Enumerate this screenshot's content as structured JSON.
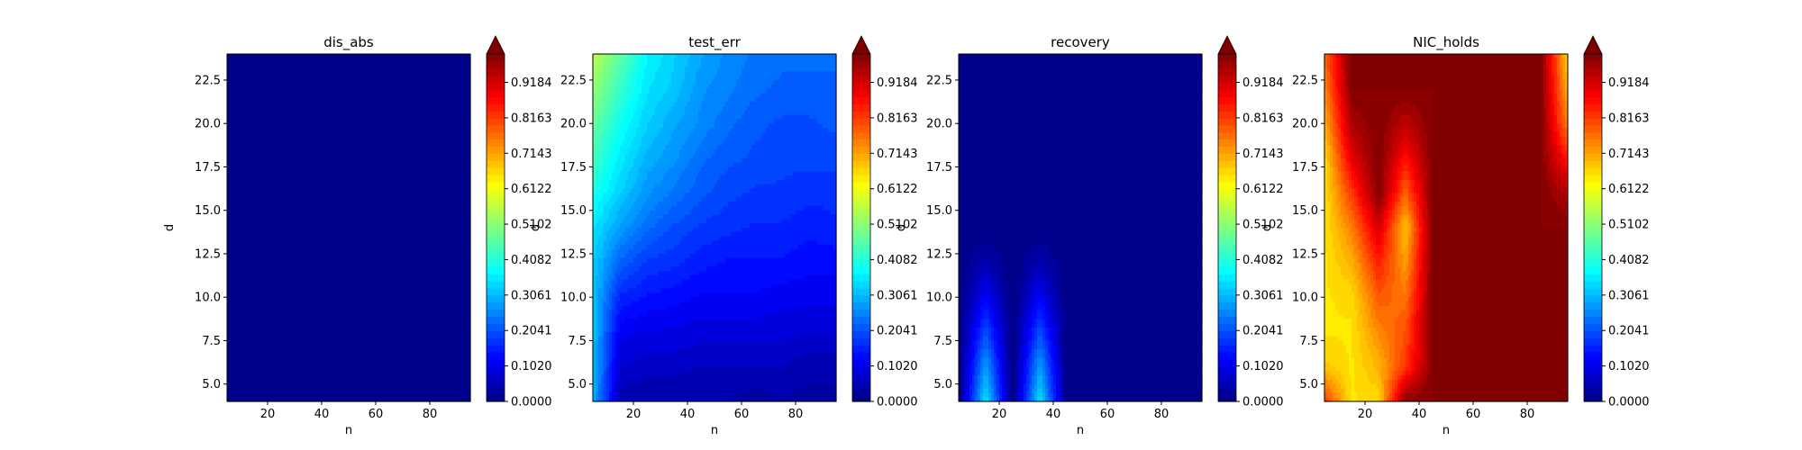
{
  "figure": {
    "background": "#ffffff"
  },
  "colorbar": {
    "ticks": [
      "0.0000",
      "0.1020",
      "0.2041",
      "0.3061",
      "0.4082",
      "0.5102",
      "0.6122",
      "0.7143",
      "0.8163",
      "0.9184"
    ],
    "extend": "max",
    "colormap": "jet"
  },
  "chart_data": [
    {
      "type": "heatmap",
      "title": "dis_abs",
      "xlabel": "n",
      "ylabel": "d",
      "xlim": [
        5,
        95
      ],
      "ylim": [
        4,
        24
      ],
      "xticks": [
        "20",
        "40",
        "60",
        "80"
      ],
      "yticks": [
        "5.0",
        "7.5",
        "10.0",
        "12.5",
        "15.0",
        "17.5",
        "20.0",
        "22.5"
      ],
      "description_value": 0.0,
      "values": "uniform 0 everywhere"
    },
    {
      "type": "heatmap",
      "title": "test_err",
      "xlabel": "n",
      "ylabel": "d",
      "xlim": [
        5,
        95
      ],
      "ylim": [
        4,
        24
      ],
      "xticks": [
        "20",
        "40",
        "60",
        "80"
      ],
      "yticks": [
        "5.0",
        "7.5",
        "10.0",
        "12.5",
        "15.0",
        "17.5",
        "20.0",
        "22.5"
      ],
      "n_values": [
        5,
        15,
        25,
        35,
        45,
        55,
        65,
        75,
        85,
        95
      ],
      "d_values": [
        4,
        6,
        8,
        10,
        12,
        14,
        16,
        18,
        20,
        22,
        24
      ],
      "grid": [
        [
          0.3,
          0.05,
          0.04,
          0.04,
          0.04,
          0.04,
          0.03,
          0.04,
          0.03,
          0.03
        ],
        [
          0.31,
          0.08,
          0.07,
          0.07,
          0.06,
          0.06,
          0.06,
          0.06,
          0.05,
          0.05
        ],
        [
          0.32,
          0.11,
          0.1,
          0.1,
          0.09,
          0.09,
          0.09,
          0.09,
          0.08,
          0.08
        ],
        [
          0.32,
          0.16,
          0.14,
          0.13,
          0.12,
          0.12,
          0.12,
          0.11,
          0.11,
          0.11
        ],
        [
          0.33,
          0.22,
          0.18,
          0.17,
          0.15,
          0.14,
          0.14,
          0.14,
          0.13,
          0.13
        ],
        [
          0.35,
          0.28,
          0.23,
          0.2,
          0.18,
          0.17,
          0.16,
          0.16,
          0.15,
          0.16
        ],
        [
          0.4,
          0.33,
          0.27,
          0.24,
          0.21,
          0.19,
          0.18,
          0.18,
          0.17,
          0.17
        ],
        [
          0.44,
          0.36,
          0.3,
          0.27,
          0.23,
          0.21,
          0.2,
          0.19,
          0.19,
          0.19
        ],
        [
          0.48,
          0.39,
          0.33,
          0.29,
          0.26,
          0.23,
          0.21,
          0.2,
          0.2,
          0.21
        ],
        [
          0.52,
          0.43,
          0.35,
          0.32,
          0.27,
          0.25,
          0.23,
          0.22,
          0.22,
          0.22
        ],
        [
          0.56,
          0.47,
          0.37,
          0.33,
          0.29,
          0.26,
          0.24,
          0.23,
          0.23,
          0.23
        ]
      ]
    },
    {
      "type": "heatmap",
      "title": "recovery",
      "xlabel": "n",
      "ylabel": "d",
      "xlim": [
        5,
        95
      ],
      "ylim": [
        4,
        24
      ],
      "xticks": [
        "20",
        "40",
        "60",
        "80"
      ],
      "yticks": [
        "5.0",
        "7.5",
        "10.0",
        "12.5",
        "15.0",
        "17.5",
        "20.0",
        "22.5"
      ],
      "n_values": [
        5,
        15,
        25,
        35,
        45,
        55,
        65,
        75,
        85,
        95
      ],
      "d_values": [
        4,
        6,
        8,
        10,
        12,
        14,
        16,
        18,
        20,
        22,
        24
      ],
      "grid": [
        [
          0,
          0.35,
          0,
          0.35,
          0,
          0,
          0,
          0,
          0,
          0
        ],
        [
          0,
          0.28,
          0,
          0.28,
          0,
          0,
          0,
          0,
          0,
          0
        ],
        [
          0,
          0.2,
          0,
          0.2,
          0,
          0,
          0,
          0,
          0,
          0
        ],
        [
          0,
          0.12,
          0,
          0.12,
          0,
          0,
          0,
          0,
          0,
          0
        ],
        [
          0,
          0.05,
          0,
          0.05,
          0,
          0,
          0,
          0,
          0,
          0
        ],
        [
          0,
          0,
          0,
          0,
          0,
          0,
          0,
          0,
          0,
          0
        ],
        [
          0,
          0,
          0,
          0,
          0,
          0,
          0,
          0,
          0,
          0
        ],
        [
          0,
          0,
          0,
          0,
          0,
          0,
          0,
          0,
          0,
          0
        ],
        [
          0,
          0,
          0,
          0,
          0,
          0,
          0,
          0,
          0,
          0
        ],
        [
          0,
          0,
          0,
          0,
          0,
          0,
          0,
          0,
          0,
          0
        ],
        [
          0,
          0,
          0,
          0,
          0,
          0,
          0,
          0,
          0,
          0
        ]
      ]
    },
    {
      "type": "heatmap",
      "title": "NIC_holds",
      "xlabel": "n",
      "ylabel": "d",
      "xlim": [
        5,
        95
      ],
      "ylim": [
        4,
        24
      ],
      "xticks": [
        "20",
        "40",
        "60",
        "80"
      ],
      "yticks": [
        "5.0",
        "7.5",
        "10.0",
        "12.5",
        "15.0",
        "17.5",
        "20.0",
        "22.5"
      ],
      "n_values": [
        5,
        15,
        25,
        35,
        45,
        55,
        65,
        75,
        85,
        95
      ],
      "d_values": [
        4,
        6,
        8,
        10,
        12,
        14,
        16,
        18,
        20,
        22,
        24
      ],
      "grid": [
        [
          0.82,
          0.65,
          0.66,
          1.0,
          1.0,
          1.0,
          1.0,
          1.0,
          1.0,
          1.0
        ],
        [
          0.68,
          0.65,
          0.7,
          0.82,
          1.0,
          1.0,
          1.0,
          1.0,
          1.0,
          1.0
        ],
        [
          0.65,
          0.65,
          0.74,
          0.8,
          1.0,
          1.0,
          1.0,
          1.0,
          1.0,
          1.0
        ],
        [
          0.65,
          0.66,
          0.79,
          0.76,
          1.0,
          1.0,
          1.0,
          1.0,
          1.0,
          1.0
        ],
        [
          0.65,
          0.7,
          0.85,
          0.72,
          1.0,
          1.0,
          1.0,
          1.0,
          1.0,
          1.0
        ],
        [
          0.65,
          0.75,
          0.92,
          0.68,
          1.0,
          1.0,
          1.0,
          1.0,
          1.0,
          1.0
        ],
        [
          0.65,
          0.82,
          1.0,
          0.78,
          1.0,
          1.0,
          1.0,
          1.0,
          1.0,
          0.95
        ],
        [
          0.66,
          0.9,
          1.0,
          0.86,
          1.0,
          1.0,
          1.0,
          1.0,
          1.0,
          0.85
        ],
        [
          0.7,
          0.96,
          1.0,
          0.94,
          1.0,
          1.0,
          1.0,
          1.0,
          1.0,
          0.75
        ],
        [
          0.74,
          1.0,
          1.0,
          1.0,
          1.0,
          1.0,
          1.0,
          1.0,
          1.0,
          0.7
        ],
        [
          0.78,
          1.0,
          1.0,
          1.0,
          1.0,
          1.0,
          1.0,
          1.0,
          1.0,
          0.66
        ]
      ]
    }
  ]
}
